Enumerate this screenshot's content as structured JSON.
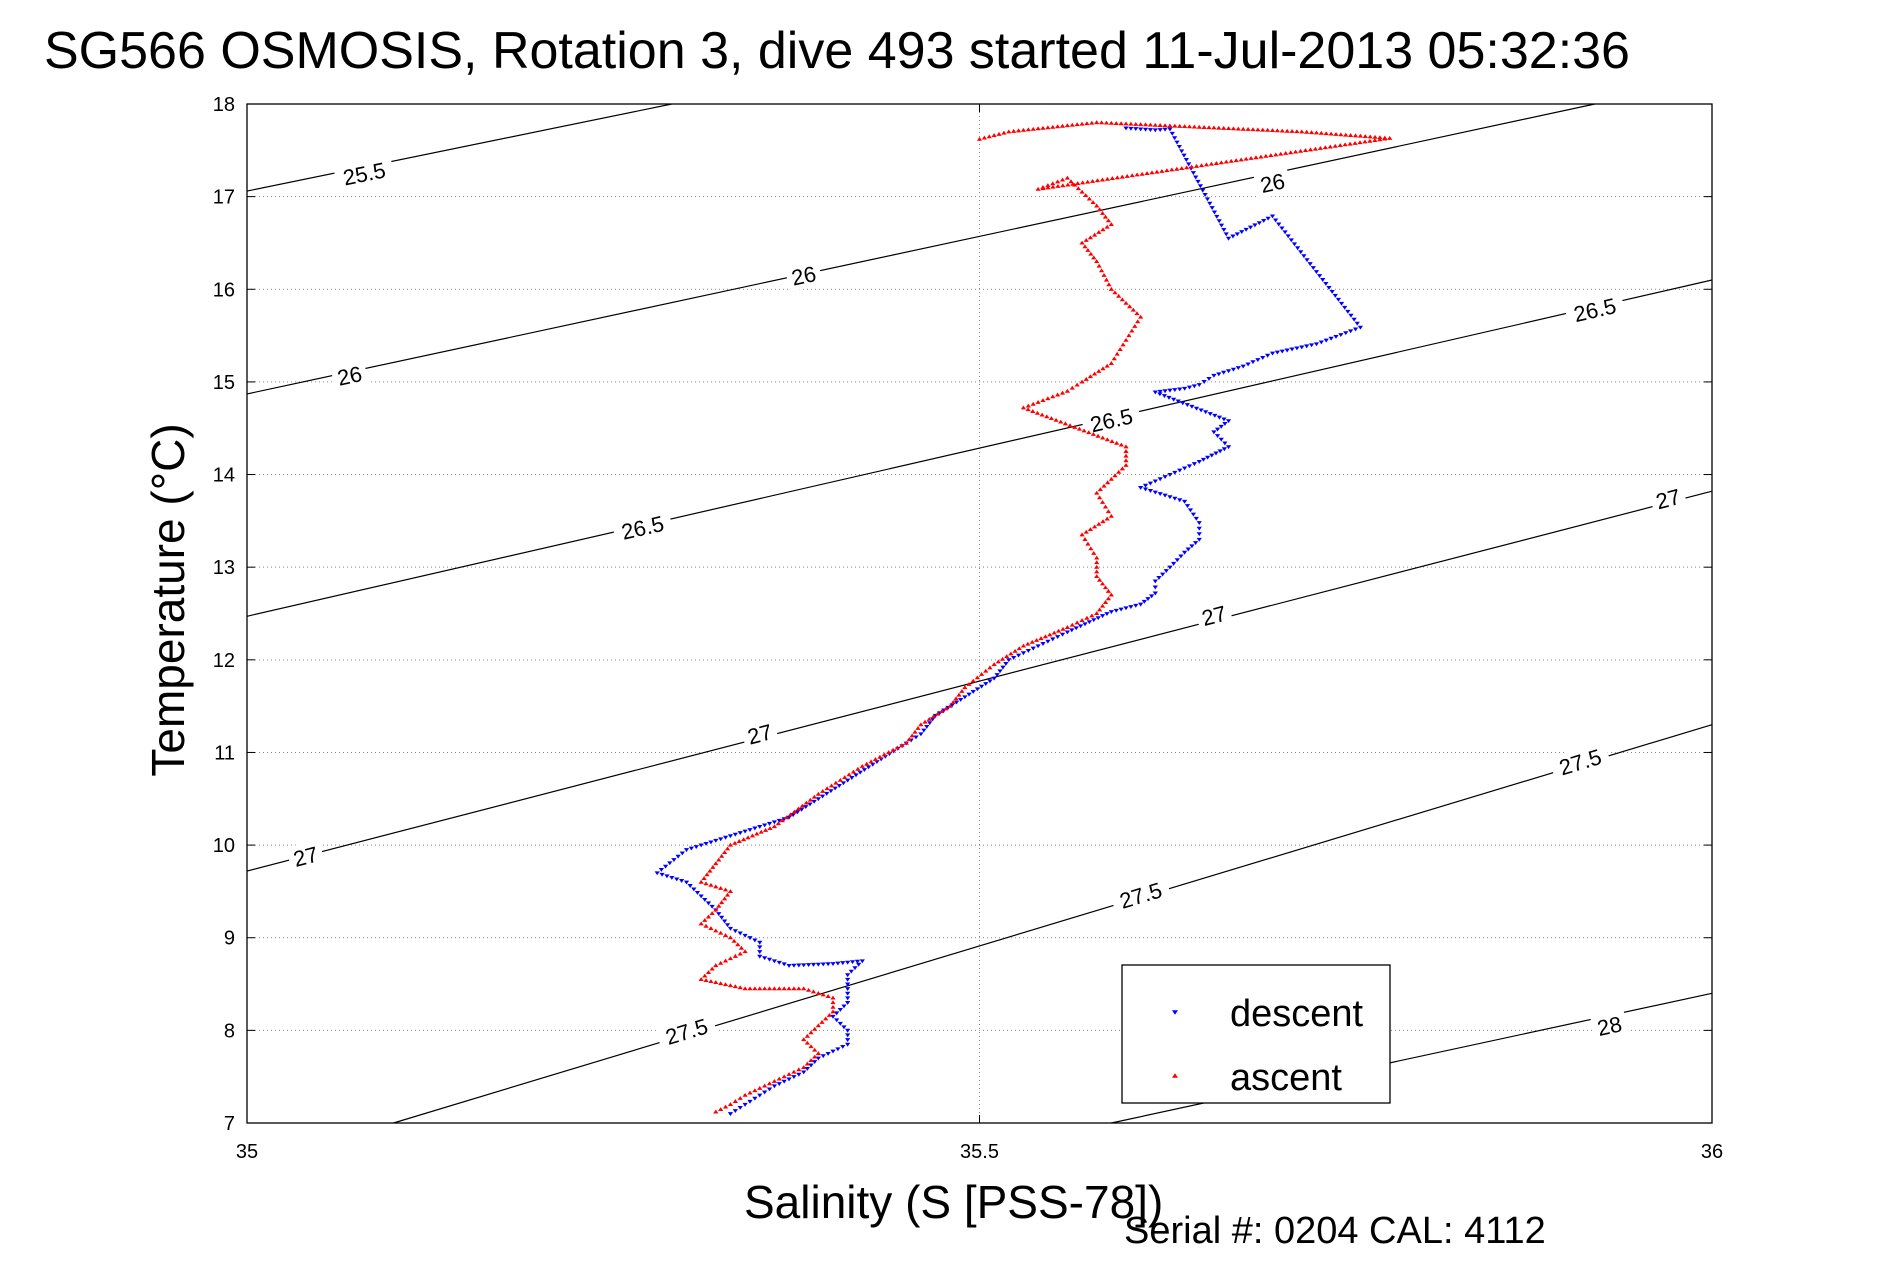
{
  "chart_data": {
    "type": "scatter",
    "title": "SG566 OSMOSIS, Rotation 3, dive 493 started 11-Jul-2013 05:32:36",
    "xlabel": "Salinity (S [PSS-78])",
    "ylabel": "Temperature (°C)",
    "xlim": [
      35,
      36
    ],
    "ylim": [
      7,
      18
    ],
    "x_ticks": [
      35,
      35.5,
      36
    ],
    "x_tick_labels": [
      "35",
      "35.5",
      "36"
    ],
    "y_ticks": [
      7,
      8,
      9,
      10,
      11,
      12,
      13,
      14,
      15,
      16,
      17,
      18
    ],
    "y_tick_labels": [
      "7",
      "8",
      "9",
      "10",
      "11",
      "12",
      "13",
      "14",
      "15",
      "16",
      "17",
      "18"
    ],
    "grid": true,
    "legend_position": "bottom-right",
    "footer": "Serial #: 0204  CAL: 4112",
    "density_contours": [
      {
        "label": "25.5",
        "points": [
          [
            35,
            17.06
          ],
          [
            35.29,
            18
          ]
        ],
        "label_positions": [
          [
            35.08,
            17.25
          ]
        ]
      },
      {
        "label": "26",
        "points": [
          [
            35,
            14.87
          ],
          [
            35.92,
            18
          ]
        ],
        "label_positions": [
          [
            35.07,
            15.07
          ],
          [
            35.38,
            16.15
          ],
          [
            35.7,
            17.15
          ]
        ]
      },
      {
        "label": "26.5",
        "points": [
          [
            35,
            12.47
          ],
          [
            36,
            16.1
          ]
        ],
        "label_positions": [
          [
            35.27,
            13.43
          ],
          [
            35.59,
            14.59
          ],
          [
            35.92,
            15.78
          ]
        ]
      },
      {
        "label": "27",
        "points": [
          [
            35,
            9.72
          ],
          [
            36,
            13.82
          ]
        ],
        "label_positions": [
          [
            35.04,
            9.88
          ],
          [
            35.35,
            11.2
          ],
          [
            35.66,
            12.48
          ],
          [
            35.97,
            13.74
          ]
        ]
      },
      {
        "label": "27.5",
        "points": [
          [
            35.1,
            7
          ],
          [
            36,
            11.3
          ]
        ],
        "label_positions": [
          [
            35.3,
            7.99
          ],
          [
            35.61,
            9.46
          ],
          [
            35.91,
            10.9
          ]
        ]
      },
      {
        "label": "28",
        "points": [
          [
            35.59,
            7
          ],
          [
            36,
            8.4
          ]
        ],
        "label_positions": [
          [
            35.93,
            8.05
          ]
        ]
      }
    ],
    "series": [
      {
        "name": "descent",
        "color": "#0000ff",
        "marker": "triangle-down",
        "points": [
          [
            35.6,
            17.74
          ],
          [
            35.61,
            17.73
          ],
          [
            35.62,
            17.72
          ],
          [
            35.63,
            17.73
          ],
          [
            35.67,
            16.55
          ],
          [
            35.7,
            16.79
          ],
          [
            35.76,
            15.59
          ],
          [
            35.73,
            15.41
          ],
          [
            35.7,
            15.31
          ],
          [
            35.68,
            15.17
          ],
          [
            35.66,
            15.07
          ],
          [
            35.65,
            14.97
          ],
          [
            35.64,
            14.93
          ],
          [
            35.62,
            14.89
          ],
          [
            35.67,
            14.58
          ],
          [
            35.66,
            14.46
          ],
          [
            35.67,
            14.3
          ],
          [
            35.65,
            14.14
          ],
          [
            35.63,
            14.0
          ],
          [
            35.61,
            13.86
          ],
          [
            35.64,
            13.71
          ],
          [
            35.65,
            13.48
          ],
          [
            35.65,
            13.3
          ],
          [
            35.64,
            13.16
          ],
          [
            35.63,
            13.0
          ],
          [
            35.62,
            12.85
          ],
          [
            35.62,
            12.72
          ],
          [
            35.61,
            12.6
          ],
          [
            35.59,
            12.52
          ],
          [
            35.56,
            12.3
          ],
          [
            35.54,
            12.15
          ],
          [
            35.52,
            12.0
          ],
          [
            35.51,
            11.8
          ],
          [
            35.49,
            11.6
          ],
          [
            35.47,
            11.4
          ],
          [
            35.46,
            11.2
          ],
          [
            35.45,
            11.1
          ],
          [
            35.43,
            10.9
          ],
          [
            35.41,
            10.7
          ],
          [
            35.39,
            10.5
          ],
          [
            35.37,
            10.3
          ],
          [
            35.34,
            10.15
          ],
          [
            35.3,
            9.95
          ],
          [
            35.28,
            9.7
          ],
          [
            35.3,
            9.6
          ],
          [
            35.31,
            9.45
          ],
          [
            35.32,
            9.3
          ],
          [
            35.33,
            9.1
          ],
          [
            35.35,
            8.95
          ],
          [
            35.35,
            8.8
          ],
          [
            35.37,
            8.7
          ],
          [
            35.4,
            8.72
          ],
          [
            35.42,
            8.75
          ],
          [
            35.41,
            8.6
          ],
          [
            35.41,
            8.45
          ],
          [
            35.41,
            8.3
          ],
          [
            35.4,
            8.15
          ],
          [
            35.41,
            8.0
          ],
          [
            35.41,
            7.85
          ],
          [
            35.39,
            7.7
          ],
          [
            35.38,
            7.55
          ],
          [
            35.36,
            7.4
          ],
          [
            35.35,
            7.3
          ],
          [
            35.34,
            7.2
          ],
          [
            35.33,
            7.1
          ]
        ]
      },
      {
        "name": "ascent",
        "color": "#ff0000",
        "marker": "triangle-up",
        "points": [
          [
            35.5,
            17.62
          ],
          [
            35.52,
            17.7
          ],
          [
            35.55,
            17.75
          ],
          [
            35.58,
            17.8
          ],
          [
            35.65,
            17.75
          ],
          [
            35.72,
            17.7
          ],
          [
            35.78,
            17.63
          ],
          [
            35.54,
            17.08
          ],
          [
            35.56,
            17.2
          ],
          [
            35.58,
            16.9
          ],
          [
            35.59,
            16.7
          ],
          [
            35.57,
            16.5
          ],
          [
            35.58,
            16.3
          ],
          [
            35.59,
            16.0
          ],
          [
            35.61,
            15.7
          ],
          [
            35.6,
            15.45
          ],
          [
            35.59,
            15.2
          ],
          [
            35.57,
            15.0
          ],
          [
            35.56,
            14.9
          ],
          [
            35.53,
            14.72
          ],
          [
            35.6,
            14.3
          ],
          [
            35.6,
            14.1
          ],
          [
            35.59,
            13.95
          ],
          [
            35.58,
            13.8
          ],
          [
            35.59,
            13.55
          ],
          [
            35.57,
            13.35
          ],
          [
            35.58,
            13.1
          ],
          [
            35.58,
            12.9
          ],
          [
            35.59,
            12.7
          ],
          [
            35.58,
            12.5
          ],
          [
            35.56,
            12.35
          ],
          [
            35.53,
            12.15
          ],
          [
            35.51,
            11.95
          ],
          [
            35.49,
            11.7
          ],
          [
            35.48,
            11.5
          ],
          [
            35.46,
            11.3
          ],
          [
            35.45,
            11.1
          ],
          [
            35.42,
            10.85
          ],
          [
            35.39,
            10.55
          ],
          [
            35.36,
            10.2
          ],
          [
            35.33,
            10.0
          ],
          [
            35.32,
            9.8
          ],
          [
            35.31,
            9.6
          ],
          [
            35.33,
            9.5
          ],
          [
            35.32,
            9.3
          ],
          [
            35.31,
            9.15
          ],
          [
            35.33,
            9.0
          ],
          [
            35.34,
            8.85
          ],
          [
            35.32,
            8.7
          ],
          [
            35.31,
            8.55
          ],
          [
            35.34,
            8.45
          ],
          [
            35.38,
            8.45
          ],
          [
            35.4,
            8.35
          ],
          [
            35.4,
            8.2
          ],
          [
            35.39,
            8.05
          ],
          [
            35.38,
            7.9
          ],
          [
            35.39,
            7.75
          ],
          [
            35.38,
            7.6
          ],
          [
            35.36,
            7.45
          ],
          [
            35.34,
            7.3
          ],
          [
            35.33,
            7.2
          ],
          [
            35.32,
            7.12
          ]
        ]
      }
    ]
  }
}
